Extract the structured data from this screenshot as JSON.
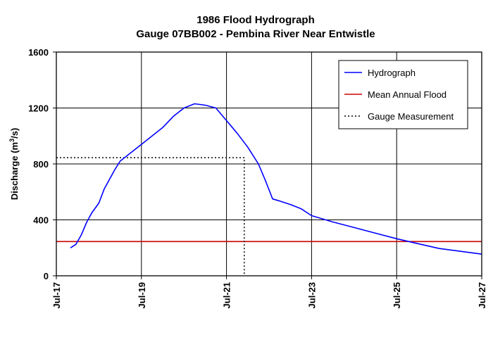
{
  "chart_data": {
    "type": "line",
    "title": "1986 Flood Hydrograph",
    "subtitle": "Gauge 07BB002 - Pembina River Near Entwistle",
    "ylabel_main": "Discharge (m",
    "ylabel_sup": "3",
    "ylabel_end": "/s)",
    "xlabel": "",
    "ylim": [
      0,
      1600
    ],
    "yticks": [
      "0",
      "400",
      "800",
      "1200",
      "1600"
    ],
    "xlim": [
      "1986-07-17",
      "1986-07-27"
    ],
    "xticks": [
      "Jul-17",
      "Jul-19",
      "Jul-21",
      "Jul-23",
      "Jul-25",
      "Jul-27"
    ],
    "grid": true,
    "legend_position": "top-right",
    "series": [
      {
        "name": "Hydrograph",
        "color": "#0000ff",
        "style": "solid",
        "points": [
          [
            "1986-07-17 08:00",
            200
          ],
          [
            "1986-07-17 11:00",
            225
          ],
          [
            "1986-07-17 14:00",
            290
          ],
          [
            "1986-07-17 17:00",
            380
          ],
          [
            "1986-07-17 20:00",
            450
          ],
          [
            "1986-07-18 00:00",
            520
          ],
          [
            "1986-07-18 03:00",
            620
          ],
          [
            "1986-07-18 06:00",
            690
          ],
          [
            "1986-07-18 09:00",
            760
          ],
          [
            "1986-07-18 12:00",
            820
          ],
          [
            "1986-07-18 18:00",
            880
          ],
          [
            "1986-07-19 00:00",
            940
          ],
          [
            "1986-07-19 06:00",
            1000
          ],
          [
            "1986-07-19 12:00",
            1060
          ],
          [
            "1986-07-19 18:00",
            1140
          ],
          [
            "1986-07-20 00:00",
            1200
          ],
          [
            "1986-07-20 06:00",
            1230
          ],
          [
            "1986-07-20 12:00",
            1220
          ],
          [
            "1986-07-20 18:00",
            1200
          ],
          [
            "1986-07-21 00:00",
            1110
          ],
          [
            "1986-07-21 06:00",
            1020
          ],
          [
            "1986-07-21 12:00",
            920
          ],
          [
            "1986-07-21 18:00",
            800
          ],
          [
            "1986-07-21 22:00",
            680
          ],
          [
            "1986-07-22 02:00",
            550
          ],
          [
            "1986-07-22 06:00",
            535
          ],
          [
            "1986-07-22 12:00",
            510
          ],
          [
            "1986-07-22 18:00",
            480
          ],
          [
            "1986-07-23 00:00",
            430
          ],
          [
            "1986-07-23 12:00",
            385
          ],
          [
            "1986-07-24 00:00",
            345
          ],
          [
            "1986-07-24 12:00",
            305
          ],
          [
            "1986-07-25 00:00",
            265
          ],
          [
            "1986-07-25 12:00",
            230
          ],
          [
            "1986-07-26 00:00",
            195
          ],
          [
            "1986-07-26 12:00",
            175
          ],
          [
            "1986-07-27 00:00",
            155
          ]
        ]
      },
      {
        "name": "Mean Annual Flood",
        "color": "#cc0000",
        "style": "solid",
        "points": [
          [
            "1986-07-17 00:00",
            245
          ],
          [
            "1986-07-27 00:00",
            245
          ]
        ]
      },
      {
        "name": "Gauge Measurement",
        "color": "#000000",
        "style": "dotted",
        "points": [
          [
            "1986-07-17 00:00",
            845
          ],
          [
            "1986-07-21 10:00",
            845
          ],
          [
            "1986-07-21 10:00",
            0
          ]
        ]
      }
    ]
  }
}
